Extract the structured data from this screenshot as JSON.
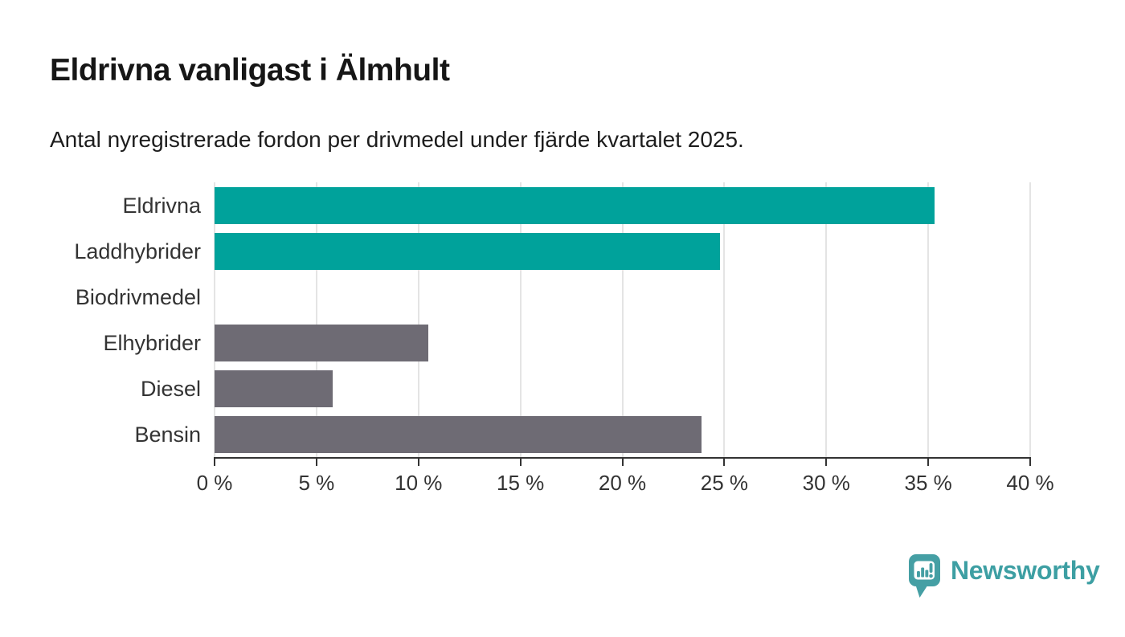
{
  "header": {
    "title": "Eldrivna vanligast i Älmhult",
    "subtitle": "Antal nyregistrerade fordon per drivmedel under fjärde kvartalet 2025."
  },
  "chart_data": {
    "type": "bar",
    "orientation": "horizontal",
    "title": "Eldrivna vanligast i Älmhult",
    "subtitle": "Antal nyregistrerade fordon per drivmedel under fjärde kvartalet 2025.",
    "categories": [
      "Eldrivna",
      "Laddhybrider",
      "Biodrivmedel",
      "Elhybrider",
      "Diesel",
      "Bensin"
    ],
    "values": [
      35.3,
      24.8,
      0,
      10.5,
      5.8,
      23.9
    ],
    "unit": "%",
    "bar_colors": [
      "#00a29b",
      "#00a29b",
      "#6e6b74",
      "#6e6b74",
      "#6e6b74",
      "#6e6b74"
    ],
    "xlim": [
      0,
      40
    ],
    "x_ticks": [
      0,
      5,
      10,
      15,
      20,
      25,
      30,
      35,
      40
    ],
    "x_tick_labels": [
      "0 %",
      "5 %",
      "10 %",
      "15 %",
      "20 %",
      "25 %",
      "30 %",
      "35 %",
      "40 %"
    ],
    "grid": true,
    "legend": false
  },
  "colors": {
    "teal_bar": "#00a29b",
    "gray_bar": "#6e6b74",
    "gridline": "#e4e4e4",
    "axis": "#333333",
    "logo_teal": "#459fa4",
    "logo_text_teal": "#3d9fa3"
  },
  "logo": {
    "text": "Newsworthy",
    "icon": "bar-chart-pin-icon"
  }
}
